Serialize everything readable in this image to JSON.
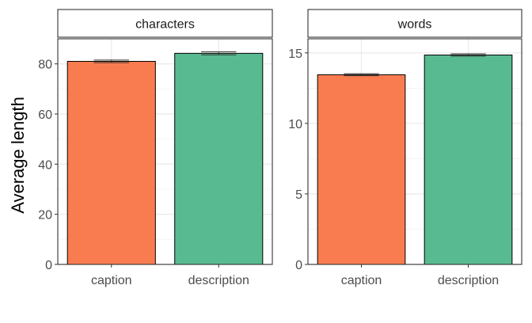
{
  "chart_data": [
    {
      "type": "bar",
      "facet": "characters",
      "categories": [
        "caption",
        "description"
      ],
      "values": [
        81.0,
        84.2
      ],
      "error": [
        [
          80.5,
          81.5
        ],
        [
          83.6,
          84.8
        ]
      ],
      "ylabel": "Average length",
      "ylim": [
        0,
        90
      ],
      "yticks": [
        0,
        20,
        40,
        60,
        80
      ],
      "grid": true
    },
    {
      "type": "bar",
      "facet": "words",
      "categories": [
        "caption",
        "description"
      ],
      "values": [
        13.45,
        14.85
      ],
      "error": [
        [
          13.38,
          13.52
        ],
        [
          14.77,
          14.93
        ]
      ],
      "ylim": [
        0,
        16
      ],
      "yticks": [
        0,
        5,
        10,
        15
      ],
      "grid": true
    }
  ],
  "colors": {
    "caption": "#F87C4F",
    "description": "#58BA91"
  }
}
